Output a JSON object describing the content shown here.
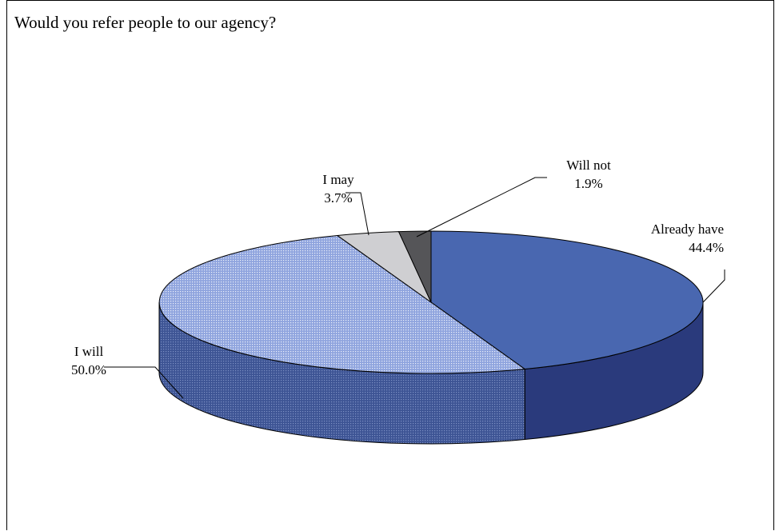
{
  "chart_data": {
    "type": "pie",
    "style": "3d",
    "title": "Would you refer people to our agency?",
    "slices": [
      {
        "label": "Already have",
        "value": 44.4,
        "value_label": "44.4%",
        "color": "#4967b0",
        "side_color": "#2a3a7c",
        "pattern": "solid"
      },
      {
        "label": "I will",
        "value": 50.0,
        "value_label": "50.0%",
        "color": "#8da3dd",
        "side_color": "#3a4f8e",
        "pattern": "dots"
      },
      {
        "label": "I may",
        "value": 3.7,
        "value_label": "3.7%",
        "color": "#cfcfd2",
        "side_color": "#9a9a9a",
        "pattern": "solid"
      },
      {
        "label": "Will not",
        "value": 1.9,
        "value_label": "1.9%",
        "color": "#555558",
        "side_color": "#333333",
        "pattern": "solid"
      }
    ],
    "start_angle": "12 o'clock",
    "direction": "clockwise",
    "legend": "none",
    "data_labels": "category name and percentage"
  }
}
